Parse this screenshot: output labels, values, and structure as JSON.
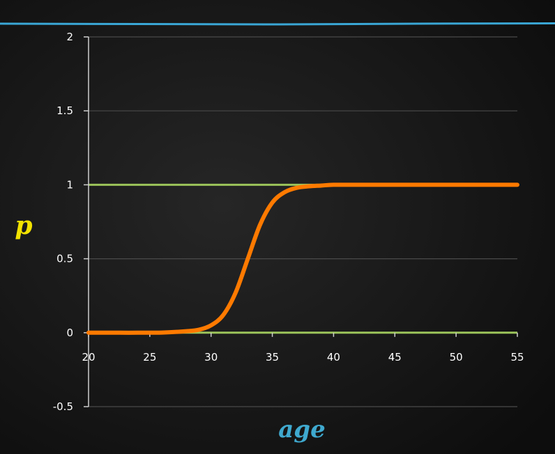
{
  "chart_data": {
    "type": "line",
    "xlabel": "age",
    "ylabel": "p",
    "xlim": [
      20,
      55
    ],
    "ylim": [
      -0.5,
      2
    ],
    "x_ticks": [
      "20",
      "25",
      "30",
      "35",
      "40",
      "45",
      "50",
      "55"
    ],
    "y_ticks": [
      "-0.5",
      "0",
      "0.5",
      "1",
      "1.5",
      "2"
    ],
    "grid": true,
    "reference_lines": [
      {
        "y": 0,
        "color": "#9cc45a"
      },
      {
        "y": 1,
        "color": "#9cc45a"
      }
    ],
    "series": [
      {
        "color": "#ff7a00",
        "x": [
          20,
          22,
          24,
          26,
          28,
          29,
          30,
          31,
          32,
          33,
          34,
          35,
          36,
          37,
          38,
          39,
          40,
          42,
          44,
          46,
          48,
          50,
          52,
          55
        ],
        "y": [
          0.0,
          0.0,
          0.0,
          0.001,
          0.01,
          0.02,
          0.05,
          0.12,
          0.27,
          0.5,
          0.73,
          0.88,
          0.95,
          0.98,
          0.99,
          0.995,
          1.0,
          1.0,
          1.0,
          1.0,
          1.0,
          1.0,
          1.0,
          1.0
        ]
      }
    ],
    "colors": {
      "background": "#141414",
      "top_rule": "#3aa7d6",
      "grid": "#4a4a4a",
      "axis": "#cfcfcf",
      "tick_text": "#ffffff",
      "ylabel": "#f2e200",
      "xlabel": "#3fa9cf"
    }
  }
}
